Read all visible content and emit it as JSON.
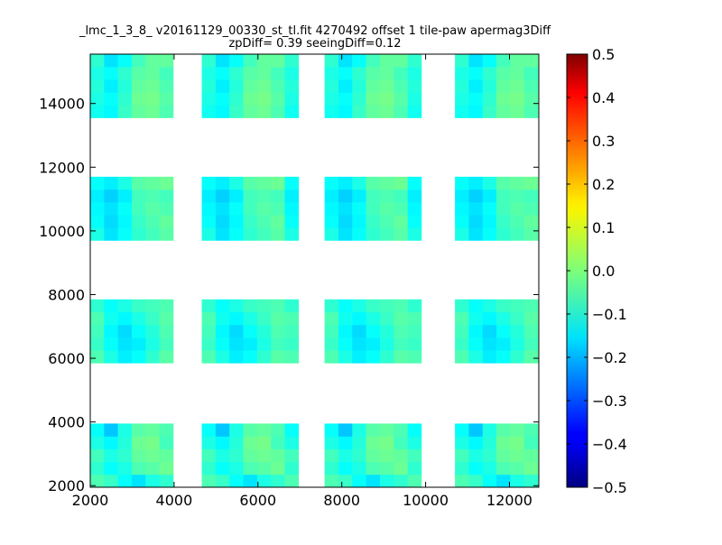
{
  "chart_data": {
    "type": "heatmap",
    "title_line1": "_lmc_1_3_8_ v20161129_00330_st_tl.fit 4270492 offset 1 tile-paw apermag3Diff",
    "title_line2": "zpDiff= 0.39 seeingDiff=0.12",
    "xlabel": "",
    "ylabel": "",
    "xlim": [
      2000,
      12700
    ],
    "ylim": [
      1950,
      15550
    ],
    "x_ticks": [
      "2000",
      "4000",
      "6000",
      "8000",
      "10000",
      "12000"
    ],
    "y_ticks": [
      "2000",
      "4000",
      "6000",
      "8000",
      "10000",
      "12000",
      "14000"
    ],
    "colorbar": {
      "colormap": "jet",
      "range": [
        -0.5,
        0.5
      ],
      "ticks": [
        "0.5",
        "0.4",
        "0.3",
        "0.2",
        "0.1",
        "0.0",
        "−0.1",
        "−0.2",
        "−0.3",
        "−0.4",
        "−0.5"
      ]
    },
    "cell_size": [
      330,
      400
    ],
    "tile_columns": [
      {
        "x_start": 2000,
        "n": 6
      },
      {
        "x_start": 4660,
        "n": 7
      },
      {
        "x_start": 7590,
        "n": 7
      },
      {
        "x_start": 10700,
        "n": 6
      }
    ],
    "tile_rows": [
      {
        "y_start": 1950,
        "n": 5
      },
      {
        "y_start": 5850,
        "n": 5
      },
      {
        "y_start": 9700,
        "n": 5
      },
      {
        "y_start": 13550,
        "n": 5
      }
    ],
    "cells": [
      [
        [
          -0.05,
          -0.07,
          -0.12,
          -0.15,
          -0.1,
          -0.08
        ],
        [
          -0.08,
          -0.12,
          -0.1,
          -0.05,
          -0.04,
          -0.02
        ],
        [
          -0.06,
          -0.1,
          -0.08,
          -0.03,
          -0.02,
          -0.03
        ],
        [
          -0.1,
          -0.13,
          -0.09,
          -0.02,
          -0.01,
          -0.06
        ],
        [
          -0.12,
          -0.18,
          -0.1,
          -0.04,
          -0.03,
          -0.05
        ]
      ],
      [
        [
          -0.05,
          -0.1,
          -0.14,
          -0.12,
          -0.08,
          -0.04
        ],
        [
          -0.07,
          -0.12,
          -0.15,
          -0.14,
          -0.1,
          -0.06
        ],
        [
          -0.06,
          -0.13,
          -0.16,
          -0.12,
          -0.09,
          -0.05
        ],
        [
          -0.05,
          -0.11,
          -0.13,
          -0.1,
          -0.07,
          -0.04
        ],
        [
          -0.08,
          -0.12,
          -0.1,
          -0.07,
          -0.06,
          -0.05
        ]
      ],
      [
        [
          -0.1,
          -0.15,
          -0.12,
          -0.08,
          -0.06,
          -0.04
        ],
        [
          -0.12,
          -0.16,
          -0.13,
          -0.07,
          -0.05,
          -0.03
        ],
        [
          -0.13,
          -0.15,
          -0.12,
          -0.06,
          -0.04,
          -0.05
        ],
        [
          -0.14,
          -0.17,
          -0.14,
          -0.06,
          -0.05,
          -0.06
        ],
        [
          -0.12,
          -0.14,
          -0.1,
          -0.04,
          -0.03,
          -0.02
        ]
      ],
      [
        [
          -0.11,
          -0.13,
          -0.07,
          -0.03,
          -0.02,
          -0.05
        ],
        [
          -0.1,
          -0.12,
          -0.08,
          -0.02,
          -0.01,
          -0.04
        ],
        [
          -0.09,
          -0.14,
          -0.09,
          -0.03,
          -0.02,
          -0.05
        ],
        [
          -0.1,
          -0.12,
          -0.08,
          -0.04,
          -0.03,
          -0.06
        ],
        [
          -0.08,
          -0.15,
          -0.12,
          -0.06,
          -0.03,
          -0.03
        ]
      ]
    ]
  }
}
